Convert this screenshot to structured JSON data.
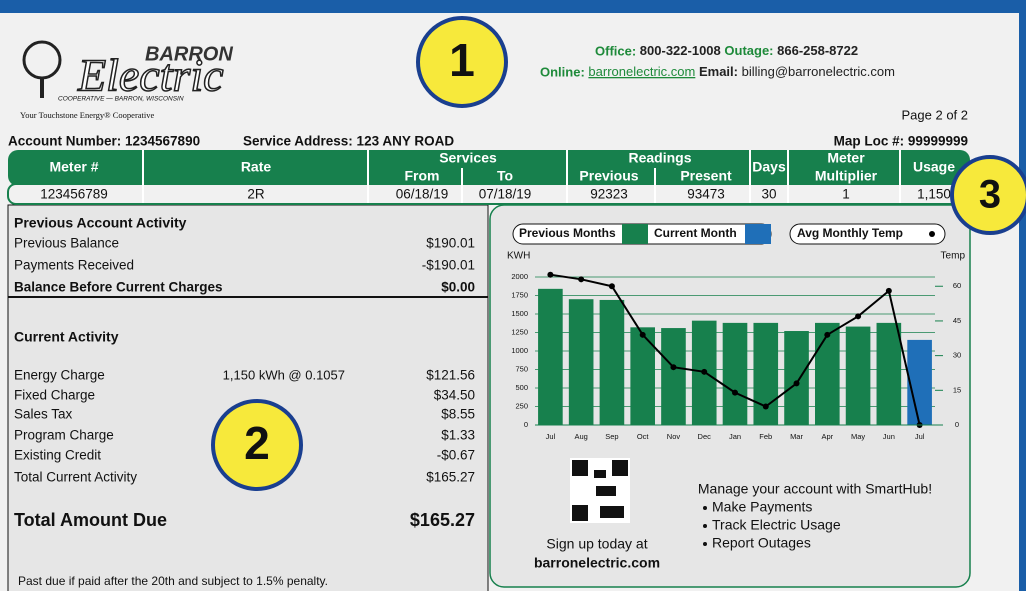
{
  "header": {
    "logo_name": "BARRON",
    "logo_word": "Electric",
    "logo_sub": "COOPERATIVE — BARRON, WISCONSIN",
    "tagline": "Your Touchstone Energy® Cooperative",
    "office_label": "Office:",
    "office": "800-322-1008",
    "outage_label": "Outage:",
    "outage": "866-258-8722",
    "online_label": "Online:",
    "online": "barronelectric.com",
    "email_label": "Email:",
    "email": "billing@barronelectric.com",
    "page": "Page 2 of 2"
  },
  "callouts": [
    "1",
    "2",
    "3"
  ],
  "account": {
    "number": "Account Number: 1234567890",
    "address": "Service Address: 123 ANY ROAD",
    "map": "Map Loc #: 99999999"
  },
  "meter_table": {
    "headers": [
      "Meter #",
      "Rate",
      "Services",
      "From",
      "To",
      "Readings",
      "Previous",
      "Present",
      "Days",
      "Meter",
      "Multiplier",
      "Usage"
    ],
    "row": [
      "123456789",
      "2R",
      "06/18/19",
      "07/18/19",
      "92323",
      "93473",
      "30",
      "1",
      "1,150"
    ]
  },
  "previous_activity": {
    "title": "Previous Account Activity",
    "rows": [
      {
        "label": "Previous Balance",
        "amount": "$190.01"
      },
      {
        "label": "Payments Received",
        "amount": "-$190.01"
      },
      {
        "label": "Balance Before Current Charges",
        "amount": "$0.00"
      }
    ]
  },
  "current_activity": {
    "title": "Current Activity",
    "rows": [
      {
        "label": "Energy Charge",
        "detail": "1,150 kWh @ 0.1057",
        "amount": "$121.56"
      },
      {
        "label": "Fixed Charge",
        "amount": "$34.50"
      },
      {
        "label": "Sales Tax",
        "amount": "$8.55"
      },
      {
        "label": "Program Charge",
        "amount": "$1.33"
      },
      {
        "label": "Existing Credit",
        "amount": "-$0.67"
      },
      {
        "label": "Total Current Activity",
        "amount": "$165.27"
      }
    ]
  },
  "total": {
    "label": "Total Amount Due",
    "amount": "$165.27"
  },
  "smarthub": {
    "title": "Manage your account with SmartHub!",
    "items": [
      "Make Payments",
      "Track Electric Usage",
      "Report Outages"
    ],
    "signup": "Sign up today at",
    "site": "barronelectric.com"
  },
  "footer": "Past due if paid after the 20th and subject to 1.5% penalty.",
  "chart_data": {
    "type": "bar",
    "categories": [
      "Jul",
      "Aug",
      "Sep",
      "Oct",
      "Nov",
      "Dec",
      "Jan",
      "Feb",
      "Mar",
      "Apr",
      "May",
      "Jun",
      "Jul"
    ],
    "series": [
      {
        "name": "Previous Months",
        "color": "#17804d",
        "values": [
          1840,
          1700,
          1690,
          1320,
          1310,
          1410,
          1380,
          1380,
          1270,
          1380,
          1330,
          1380,
          null
        ]
      },
      {
        "name": "Current Month",
        "color": "#1f6fb8",
        "values": [
          null,
          null,
          null,
          null,
          null,
          null,
          null,
          null,
          null,
          null,
          null,
          null,
          1150
        ]
      },
      {
        "name": "Avg Monthly Temp",
        "type": "line",
        "axis": "y2",
        "color": "#000000",
        "values": [
          65,
          63,
          60,
          39,
          25,
          23,
          14,
          8,
          18,
          39,
          47,
          58,
          0
        ]
      }
    ],
    "y_label": "KWH",
    "y2_label": "Temp",
    "ylim": [
      0,
      2000
    ],
    "yticks": [
      0,
      250,
      500,
      750,
      1000,
      1250,
      1500,
      1750,
      2000
    ],
    "y2lim": [
      0,
      64
    ],
    "y2ticks": [
      0,
      15,
      30,
      45,
      60
    ],
    "grid": true
  }
}
